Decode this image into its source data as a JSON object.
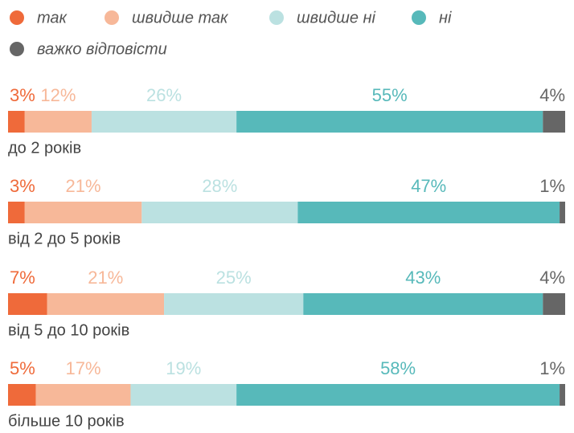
{
  "chart_data": {
    "type": "stacked-bar-horizontal",
    "categories": [
      "до 2 років",
      "від 2 до 5 років",
      "від 5 до 10 років",
      "більше 10 років"
    ],
    "series": [
      {
        "name": "так",
        "color": "#ef6a3a",
        "values": [
          3,
          3,
          7,
          5
        ],
        "value_labels": [
          "3%",
          "3%",
          "7%",
          "5%"
        ]
      },
      {
        "name": "швидше так",
        "color": "#f7b899",
        "values": [
          12,
          21,
          21,
          17
        ],
        "value_labels": [
          "12%",
          "21%",
          "21%",
          "17%"
        ]
      },
      {
        "name": "швидше ні",
        "color": "#bbe1e1",
        "values": [
          26,
          28,
          25,
          19
        ],
        "value_labels": [
          "26%",
          "28%",
          "25%",
          "19%"
        ]
      },
      {
        "name": "ні",
        "color": "#57b9ba",
        "values": [
          55,
          47,
          43,
          58
        ],
        "value_labels": [
          "55%",
          "47%",
          "43%",
          "58%"
        ]
      },
      {
        "name": "важко відповісти",
        "color": "#666666",
        "values": [
          4,
          1,
          4,
          1
        ],
        "value_labels": [
          "4%",
          "1%",
          "4%",
          "1%"
        ]
      }
    ]
  }
}
